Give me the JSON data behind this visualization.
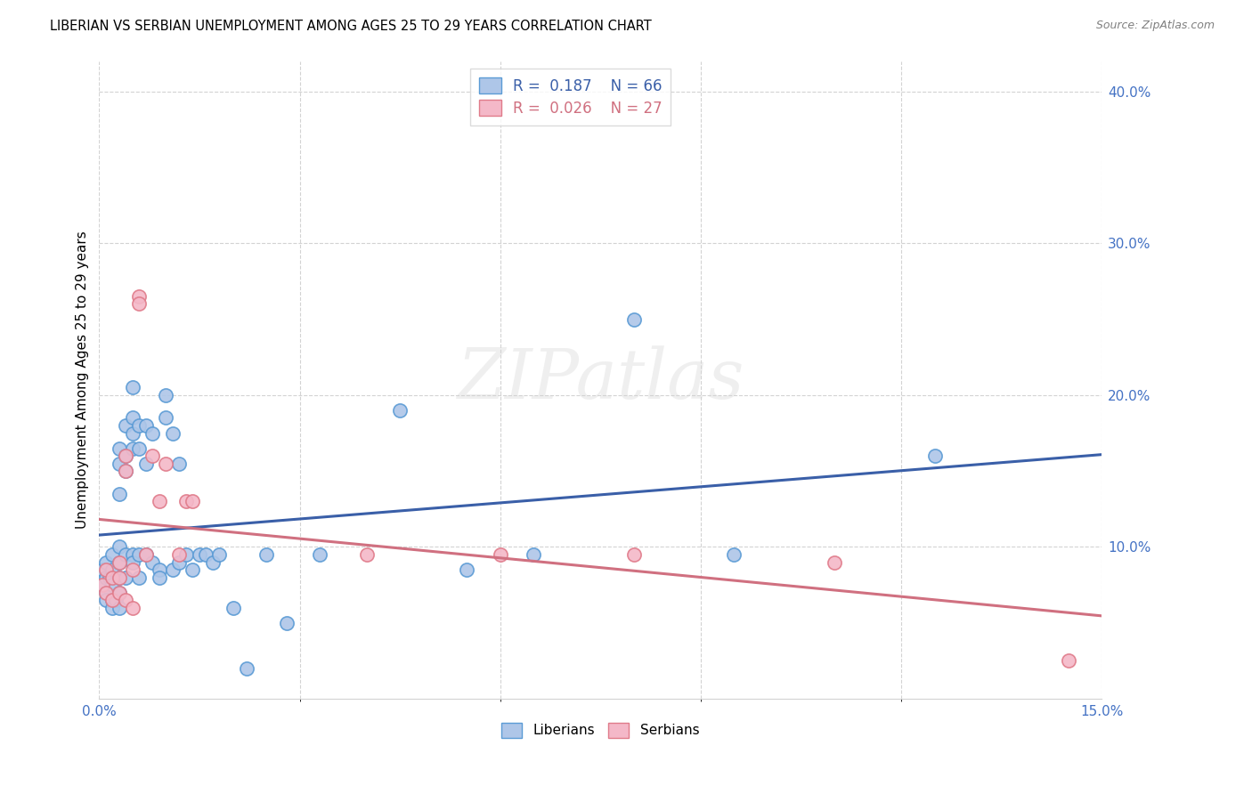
{
  "title": "LIBERIAN VS SERBIAN UNEMPLOYMENT AMONG AGES 25 TO 29 YEARS CORRELATION CHART",
  "source": "Source: ZipAtlas.com",
  "ylabel": "Unemployment Among Ages 25 to 29 years",
  "xlim": [
    0.0,
    0.15
  ],
  "ylim": [
    0.0,
    0.42
  ],
  "xticks": [
    0.0,
    0.15
  ],
  "yticks": [
    0.1,
    0.2,
    0.3,
    0.4
  ],
  "liberian_color": "#aec6e8",
  "liberian_edge": "#5b9bd5",
  "serbian_color": "#f4b8c8",
  "serbian_edge": "#e07b8a",
  "line_liberian_color": "#3a5fa8",
  "line_serbian_color": "#d07080",
  "R_liberian": 0.187,
  "N_liberian": 66,
  "R_serbian": 0.026,
  "N_serbian": 27,
  "watermark": "ZIPatlas",
  "liberian_x": [
    0.0005,
    0.0005,
    0.001,
    0.001,
    0.001,
    0.001,
    0.0015,
    0.002,
    0.002,
    0.002,
    0.002,
    0.002,
    0.0025,
    0.003,
    0.003,
    0.003,
    0.003,
    0.003,
    0.003,
    0.003,
    0.003,
    0.004,
    0.004,
    0.004,
    0.004,
    0.004,
    0.005,
    0.005,
    0.005,
    0.005,
    0.005,
    0.005,
    0.006,
    0.006,
    0.006,
    0.006,
    0.007,
    0.007,
    0.007,
    0.008,
    0.008,
    0.009,
    0.009,
    0.01,
    0.01,
    0.011,
    0.011,
    0.012,
    0.012,
    0.013,
    0.014,
    0.015,
    0.016,
    0.017,
    0.018,
    0.02,
    0.022,
    0.025,
    0.028,
    0.033,
    0.045,
    0.055,
    0.065,
    0.08,
    0.095,
    0.125
  ],
  "liberian_y": [
    0.085,
    0.075,
    0.09,
    0.08,
    0.07,
    0.065,
    0.08,
    0.095,
    0.085,
    0.075,
    0.065,
    0.06,
    0.065,
    0.165,
    0.155,
    0.135,
    0.1,
    0.09,
    0.08,
    0.07,
    0.06,
    0.18,
    0.16,
    0.15,
    0.095,
    0.08,
    0.205,
    0.185,
    0.175,
    0.165,
    0.095,
    0.09,
    0.18,
    0.165,
    0.095,
    0.08,
    0.18,
    0.155,
    0.095,
    0.175,
    0.09,
    0.085,
    0.08,
    0.2,
    0.185,
    0.175,
    0.085,
    0.155,
    0.09,
    0.095,
    0.085,
    0.095,
    0.095,
    0.09,
    0.095,
    0.06,
    0.02,
    0.095,
    0.05,
    0.095,
    0.19,
    0.085,
    0.095,
    0.25,
    0.095,
    0.16
  ],
  "serbian_x": [
    0.0005,
    0.001,
    0.001,
    0.002,
    0.002,
    0.003,
    0.003,
    0.003,
    0.004,
    0.004,
    0.004,
    0.005,
    0.005,
    0.006,
    0.006,
    0.007,
    0.008,
    0.009,
    0.01,
    0.012,
    0.013,
    0.014,
    0.04,
    0.06,
    0.08,
    0.11,
    0.145
  ],
  "serbian_y": [
    0.075,
    0.085,
    0.07,
    0.08,
    0.065,
    0.09,
    0.08,
    0.07,
    0.16,
    0.15,
    0.065,
    0.085,
    0.06,
    0.265,
    0.26,
    0.095,
    0.16,
    0.13,
    0.155,
    0.095,
    0.13,
    0.13,
    0.095,
    0.095,
    0.095,
    0.09,
    0.025
  ]
}
